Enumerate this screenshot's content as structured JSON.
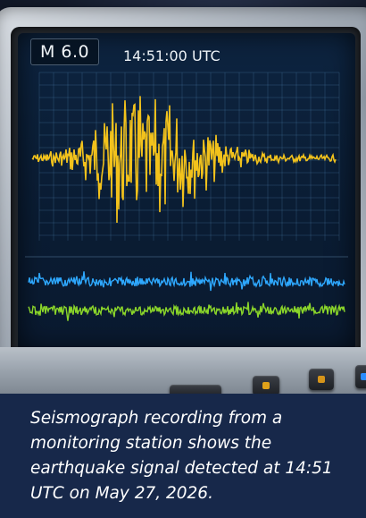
{
  "display": {
    "magnitude": "M 6.0",
    "timestamp": "14:51:00 UTC"
  },
  "colors": {
    "primary_trace": "#f2c21c",
    "blue_trace": "#2ea8ff",
    "green_trace": "#8bd62a",
    "caption_bg": "#17284a"
  },
  "caption": {
    "text": "Seismograph recording from a monitoring station shows the earthquake signal detected at 14:51 UTC on May 27, 2026."
  }
}
